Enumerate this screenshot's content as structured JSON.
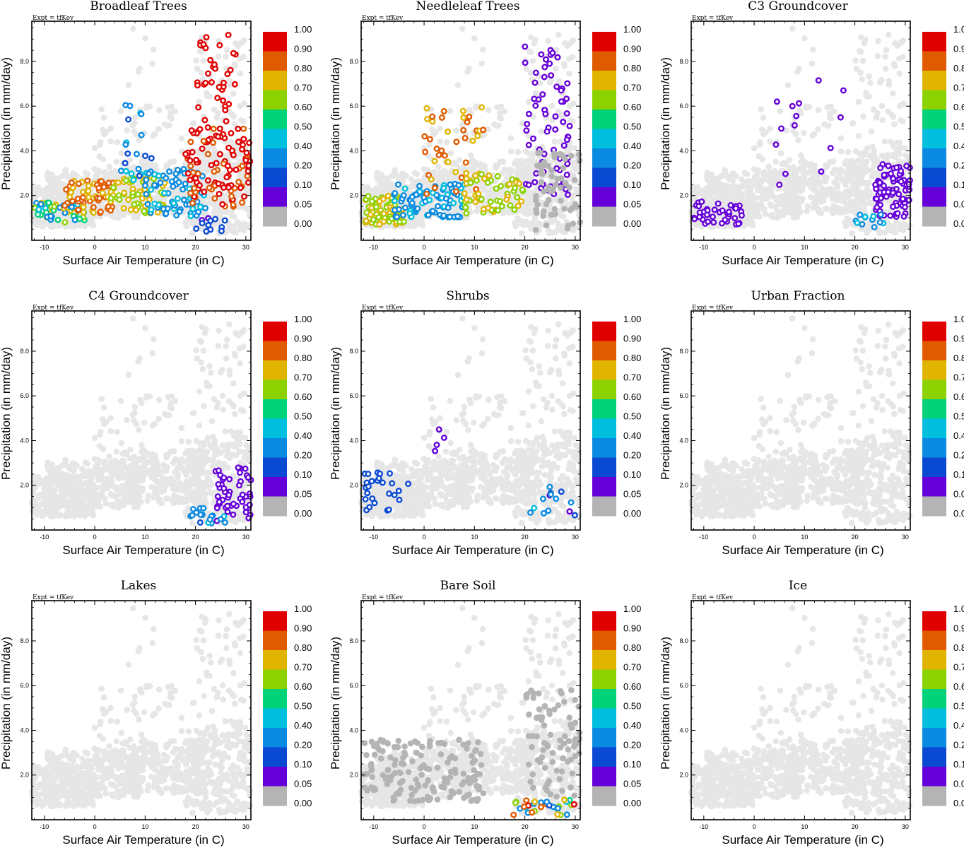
{
  "figure": {
    "expt_label": "Expt = tfKev",
    "xlabel": "Surface Air Temperature (in C)",
    "ylabel": "Precipitation (in mm/day)",
    "x_ticks": [
      "-10",
      "0",
      "10",
      "20",
      "30"
    ],
    "y_ticks": [
      "2.0",
      "4.0",
      "6.0",
      "8.0"
    ],
    "colorbar_labels": [
      "1.00",
      "0.90",
      "0.80",
      "0.70",
      "0.60",
      "0.50",
      "0.40",
      "0.20",
      "0.10",
      "0.05",
      "0.00"
    ],
    "colorbar_colors": [
      "#e00000",
      "#e05a00",
      "#e0b400",
      "#8cd200",
      "#00d27a",
      "#00bede",
      "#0a8ae0",
      "#0a4ad2",
      "#6600d8",
      "#b4b4b4"
    ],
    "background_point_color": "#e6e6e6",
    "zero_point_color": "#b4b4b4"
  },
  "chart_data": [
    {
      "type": "scatter",
      "title": "Broadleaf Trees",
      "xlabel": "Surface Air Temperature (in C)",
      "ylabel": "Precipitation (in mm/day)",
      "xlim": [
        -12.5,
        31
      ],
      "ylim": [
        0,
        9.8
      ],
      "colorscale": [
        0,
        1
      ],
      "clusters": [
        {
          "x": [
            -12,
            -2
          ],
          "y": [
            0.8,
            1.7
          ],
          "n": 60,
          "v": [
            0.3,
            0.75
          ]
        },
        {
          "x": [
            -6,
            4
          ],
          "y": [
            1.2,
            2.7
          ],
          "n": 70,
          "v": [
            0.75,
            0.9
          ]
        },
        {
          "x": [
            3,
            14
          ],
          "y": [
            1.2,
            2.8
          ],
          "n": 60,
          "v": [
            0.65,
            0.75
          ]
        },
        {
          "x": [
            10,
            22
          ],
          "y": [
            1.0,
            3.2
          ],
          "n": 80,
          "v": [
            0.2,
            0.45
          ]
        },
        {
          "x": [
            5,
            12
          ],
          "y": [
            2.5,
            6.2
          ],
          "n": 20,
          "v": [
            0.1,
            0.45
          ]
        },
        {
          "x": [
            18,
            31
          ],
          "y": [
            1.5,
            5.0
          ],
          "n": 110,
          "v": [
            0.85,
            1.0
          ]
        },
        {
          "x": [
            20,
            28
          ],
          "y": [
            4.5,
            9.2
          ],
          "n": 40,
          "v": [
            0.95,
            1.0
          ]
        },
        {
          "x": [
            20,
            26
          ],
          "y": [
            0.3,
            1.0
          ],
          "n": 12,
          "v": [
            0.05,
            0.2
          ]
        }
      ]
    },
    {
      "type": "scatter",
      "title": "Needleleaf Trees",
      "xlabel": "Surface Air Temperature (in C)",
      "ylabel": "Precipitation (in mm/day)",
      "xlim": [
        -12.5,
        31
      ],
      "ylim": [
        0,
        9.8
      ],
      "colorscale": [
        0,
        1
      ],
      "clusters": [
        {
          "x": [
            -12,
            -4
          ],
          "y": [
            0.7,
            2.0
          ],
          "n": 80,
          "v": [
            0.65,
            0.75
          ]
        },
        {
          "x": [
            -6,
            8
          ],
          "y": [
            1.0,
            2.6
          ],
          "n": 90,
          "v": [
            0.2,
            0.45
          ]
        },
        {
          "x": [
            0,
            12
          ],
          "y": [
            2.0,
            6.0
          ],
          "n": 40,
          "v": [
            0.75,
            0.9
          ]
        },
        {
          "x": [
            8,
            20
          ],
          "y": [
            1.2,
            3.0
          ],
          "n": 60,
          "v": [
            0.65,
            0.75
          ]
        },
        {
          "x": [
            20,
            29
          ],
          "y": [
            2.0,
            9.0
          ],
          "n": 70,
          "v": [
            0.06,
            0.1
          ]
        },
        {
          "x": [
            22,
            31
          ],
          "y": [
            0.3,
            4.0
          ],
          "n": 60,
          "v": [
            0.0,
            0.0
          ]
        }
      ]
    },
    {
      "type": "scatter",
      "title": "C3 Groundcover",
      "xlabel": "Surface Air Temperature (in C)",
      "ylabel": "Precipitation (in mm/day)",
      "xlim": [
        -12.5,
        31
      ],
      "ylim": [
        0,
        9.8
      ],
      "colorscale": [
        0,
        1
      ],
      "clusters": [
        {
          "x": [
            -12,
            -2
          ],
          "y": [
            0.7,
            1.8
          ],
          "n": 40,
          "v": [
            0.06,
            0.1
          ]
        },
        {
          "x": [
            24,
            31
          ],
          "y": [
            1.0,
            3.5
          ],
          "n": 80,
          "v": [
            0.06,
            0.1
          ]
        },
        {
          "x": [
            20,
            26
          ],
          "y": [
            0.4,
            1.2
          ],
          "n": 12,
          "v": [
            0.15,
            0.5
          ]
        },
        {
          "x": [
            4,
            18
          ],
          "y": [
            2.0,
            7.8
          ],
          "n": 14,
          "v": [
            0.06,
            0.1
          ]
        }
      ]
    },
    {
      "type": "scatter",
      "title": "C4 Groundcover",
      "xlabel": "Surface Air Temperature (in C)",
      "ylabel": "Precipitation (in mm/day)",
      "xlim": [
        -12.5,
        31
      ],
      "ylim": [
        0,
        9.8
      ],
      "colorscale": [
        0,
        1
      ],
      "clusters": [
        {
          "x": [
            24,
            31
          ],
          "y": [
            0.4,
            2.8
          ],
          "n": 50,
          "v": [
            0.06,
            0.1
          ]
        },
        {
          "x": [
            19,
            26
          ],
          "y": [
            0.3,
            1.0
          ],
          "n": 18,
          "v": [
            0.15,
            0.45
          ]
        }
      ]
    },
    {
      "type": "scatter",
      "title": "Shrubs",
      "xlabel": "Surface Air Temperature (in C)",
      "ylabel": "Precipitation (in mm/day)",
      "xlim": [
        -12.5,
        31
      ],
      "ylim": [
        0,
        9.8
      ],
      "colorscale": [
        0,
        1
      ],
      "clusters": [
        {
          "x": [
            -12,
            -3
          ],
          "y": [
            0.7,
            2.6
          ],
          "n": 26,
          "v": [
            0.1,
            0.2
          ]
        },
        {
          "x": [
            2,
            4
          ],
          "y": [
            3.4,
            4.6
          ],
          "n": 4,
          "v": [
            0.06,
            0.1
          ]
        },
        {
          "x": [
            18,
            30
          ],
          "y": [
            0.5,
            2.0
          ],
          "n": 14,
          "v": [
            0.06,
            0.45
          ]
        }
      ]
    },
    {
      "type": "scatter",
      "title": "Urban Fraction",
      "xlabel": "Surface Air Temperature (in C)",
      "ylabel": "Precipitation (in mm/day)",
      "xlim": [
        -12.5,
        31
      ],
      "ylim": [
        0,
        9.8
      ],
      "colorscale": [
        0,
        1
      ],
      "clusters": []
    },
    {
      "type": "scatter",
      "title": "Lakes",
      "xlabel": "Surface Air Temperature (in C)",
      "ylabel": "Precipitation (in mm/day)",
      "xlim": [
        -12.5,
        31
      ],
      "ylim": [
        0,
        9.8
      ],
      "colorscale": [
        0,
        1
      ],
      "clusters": []
    },
    {
      "type": "scatter",
      "title": "Bare Soil",
      "xlabel": "Surface Air Temperature (in C)",
      "ylabel": "Precipitation (in mm/day)",
      "xlim": [
        -12.5,
        31
      ],
      "ylim": [
        0,
        9.8
      ],
      "colorscale": [
        0,
        1
      ],
      "clusters": [
        {
          "x": [
            -12,
            12
          ],
          "y": [
            0.8,
            3.6
          ],
          "n": 160,
          "v": [
            0.0,
            0.0
          ]
        },
        {
          "x": [
            20,
            31
          ],
          "y": [
            1.0,
            6.0
          ],
          "n": 80,
          "v": [
            0.0,
            0.0
          ]
        },
        {
          "x": [
            17,
            30
          ],
          "y": [
            0.15,
            0.9
          ],
          "n": 30,
          "v": [
            0.1,
            1.0
          ]
        }
      ]
    },
    {
      "type": "scatter",
      "title": "Ice",
      "xlabel": "Surface Air Temperature (in C)",
      "ylabel": "Precipitation (in mm/day)",
      "xlim": [
        -12.5,
        31
      ],
      "ylim": [
        0,
        9.8
      ],
      "colorscale": [
        0,
        1
      ],
      "clusters": []
    }
  ]
}
